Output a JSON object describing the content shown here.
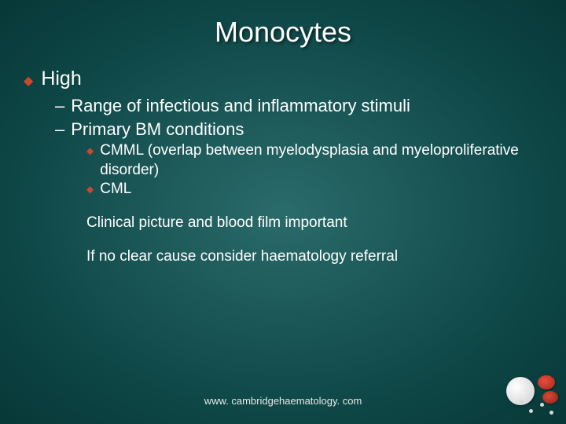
{
  "title": "Monocytes",
  "l1": {
    "text": "High"
  },
  "l2a": "Range of infectious and inflammatory stimuli",
  "l2b": "Primary BM conditions",
  "l3a": "CMML (overlap between myelodysplasia and myeloproliferative disorder)",
  "l3b": "CML",
  "p1": "Clinical picture and blood film important",
  "p2": "If no clear cause consider haematology referral",
  "footer": "www. cambridgehaematology. com",
  "colors": {
    "bullet": "#c94a2e",
    "text": "#ffffff",
    "bg_center": "#2a6b6b",
    "bg_edge": "#083838"
  },
  "fontsize": {
    "title": 36,
    "l1": 25,
    "l2": 22,
    "l3": 19,
    "footer": 13
  }
}
